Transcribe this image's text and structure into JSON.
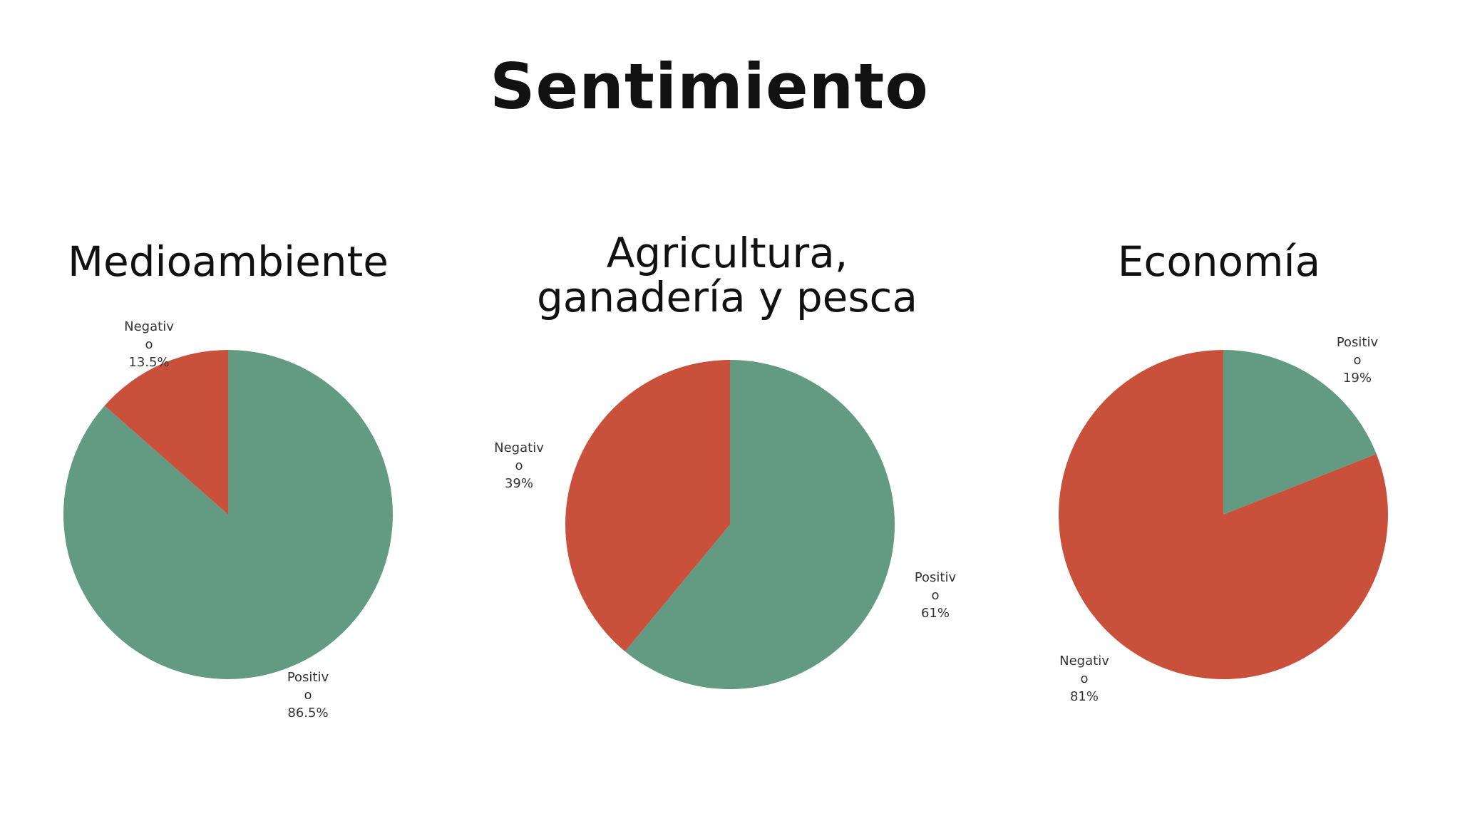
{
  "page": {
    "title": "Sentimiento"
  },
  "colors": {
    "positive": "#629b82",
    "negative": "#c9503b"
  },
  "chart_data": [
    {
      "type": "pie",
      "title": "Medioambiente",
      "slices": [
        {
          "label_lines": [
            "Positiv",
            "o",
            "86.5%"
          ],
          "category": "Positivo",
          "value": 86.5,
          "color": "#629b82"
        },
        {
          "label_lines": [
            "Negativ",
            "o",
            "13.5%"
          ],
          "category": "Negativo",
          "value": 13.5,
          "color": "#c9503b"
        }
      ]
    },
    {
      "type": "pie",
      "title": "Agricultura, ganadería y pesca",
      "slices": [
        {
          "label_lines": [
            "Positiv",
            "o",
            "61%"
          ],
          "category": "Positivo",
          "value": 61,
          "color": "#629b82"
        },
        {
          "label_lines": [
            "Negativ",
            "o",
            "39%"
          ],
          "category": "Negativo",
          "value": 39,
          "color": "#c9503b"
        }
      ]
    },
    {
      "type": "pie",
      "title": "Economía",
      "slices": [
        {
          "label_lines": [
            "Positiv",
            "o",
            "19%"
          ],
          "category": "Positivo",
          "value": 19,
          "color": "#629b82"
        },
        {
          "label_lines": [
            "Negativ",
            "o",
            "81%"
          ],
          "category": "Negativo",
          "value": 81,
          "color": "#c9503b"
        }
      ]
    }
  ]
}
